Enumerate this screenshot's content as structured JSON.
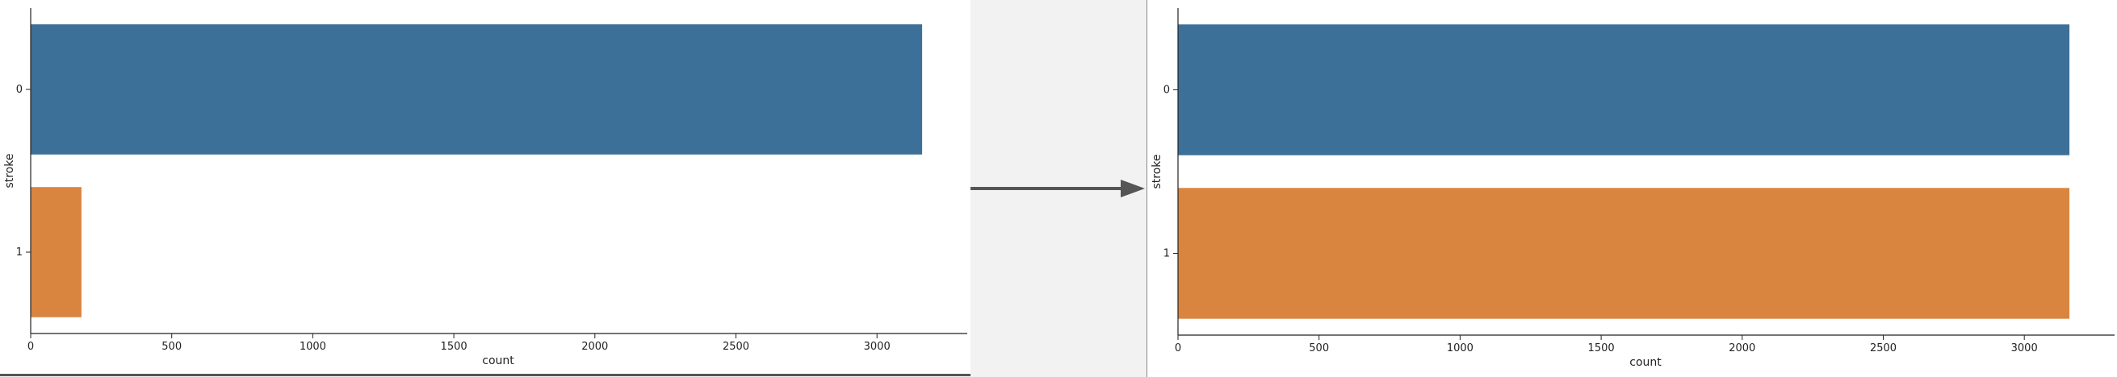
{
  "chart_data": [
    {
      "type": "bar",
      "orientation": "horizontal",
      "categories": [
        "0",
        "1"
      ],
      "values": [
        3160,
        180
      ],
      "colors": [
        "#3d7099",
        "#d98540"
      ],
      "xlabel": "count",
      "ylabel": "stroke",
      "xticks": [
        "0",
        "500",
        "1000",
        "1500",
        "2000",
        "2500",
        "3000"
      ],
      "xlim": [
        0,
        3320
      ],
      "grid": false
    },
    {
      "type": "bar",
      "orientation": "horizontal",
      "categories": [
        "0",
        "1"
      ],
      "values": [
        3160,
        3160
      ],
      "colors": [
        "#3d7099",
        "#d98540"
      ],
      "xlabel": "count",
      "ylabel": "stroke",
      "xticks": [
        "0",
        "500",
        "1000",
        "1500",
        "2000",
        "2500",
        "3000"
      ],
      "xlim": [
        0,
        3320
      ],
      "grid": false
    }
  ],
  "arrow": {
    "color": "#555555",
    "icon": "right-arrow-icon"
  }
}
